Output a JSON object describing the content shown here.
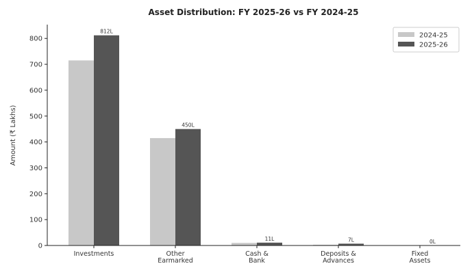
{
  "chart_data": {
    "type": "bar",
    "title": "Asset Distribution: FY 2025-26 vs FY 2024-25",
    "xlabel": "",
    "ylabel": "Amount (₹ Lakhs)",
    "ylim": [
      0,
      850
    ],
    "yticks": [
      "0",
      "100",
      "200",
      "300",
      "400",
      "500",
      "600",
      "700",
      "800"
    ],
    "grid": false,
    "legend_position": "top-right",
    "categories": [
      [
        "Investments"
      ],
      [
        "Other",
        "Earmarked"
      ],
      [
        "Cash &",
        "Bank"
      ],
      [
        "Deposits &",
        "Advances"
      ],
      [
        "Fixed",
        "Assets"
      ]
    ],
    "series": [
      {
        "name": "2024-25",
        "color": "#c8c8c8",
        "values": [
          715,
          415,
          10,
          3,
          0.3
        ]
      },
      {
        "name": "2025-26",
        "color": "#555555",
        "values": [
          812,
          450,
          11,
          7,
          0.5
        ]
      }
    ],
    "data_labels": [
      "812L",
      "450L",
      "11L",
      "7L",
      "0L"
    ]
  }
}
